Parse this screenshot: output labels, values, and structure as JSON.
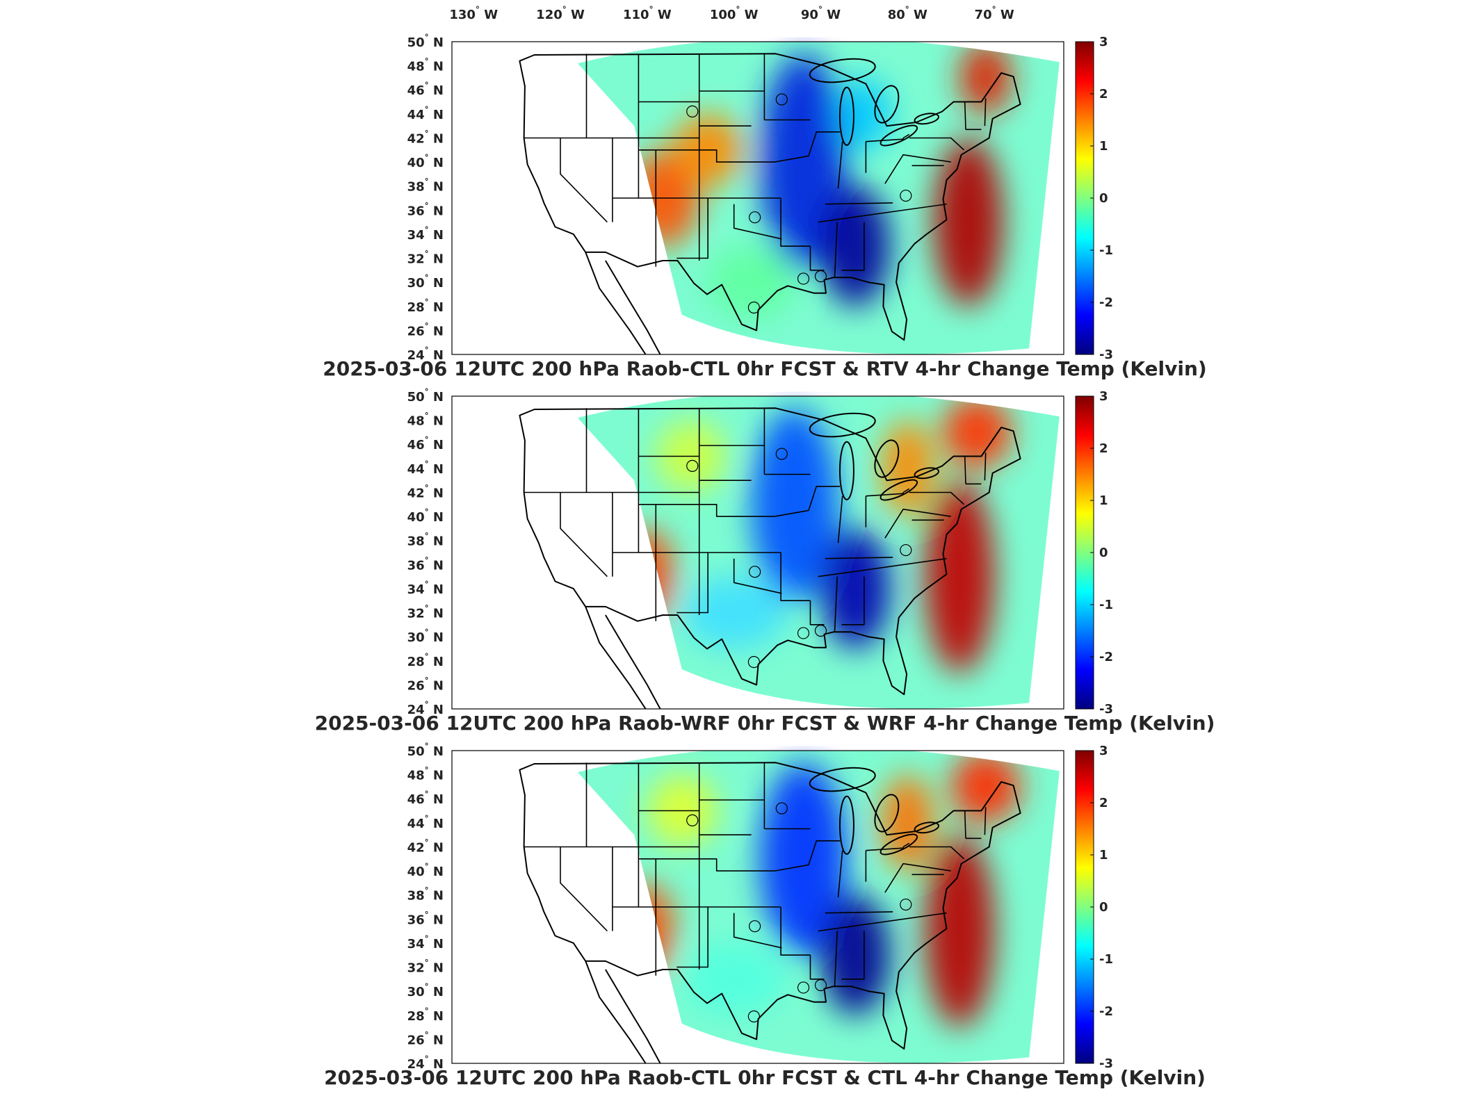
{
  "longitude_ticks": [
    {
      "deg": "130",
      "hem": "W",
      "lon": -130
    },
    {
      "deg": "120",
      "hem": "W",
      "lon": -120
    },
    {
      "deg": "110",
      "hem": "W",
      "lon": -110
    },
    {
      "deg": "100",
      "hem": "W",
      "lon": -100
    },
    {
      "deg": "90",
      "hem": "W",
      "lon": -90
    },
    {
      "deg": "80",
      "hem": "W",
      "lon": -80
    },
    {
      "deg": "70",
      "hem": "W",
      "lon": -70
    }
  ],
  "latitude_ticks": [
    {
      "deg": "50",
      "hem": "N",
      "lat": 50
    },
    {
      "deg": "48",
      "hem": "N",
      "lat": 48
    },
    {
      "deg": "46",
      "hem": "N",
      "lat": 46
    },
    {
      "deg": "44",
      "hem": "N",
      "lat": 44
    },
    {
      "deg": "42",
      "hem": "N",
      "lat": 42
    },
    {
      "deg": "40",
      "hem": "N",
      "lat": 40
    },
    {
      "deg": "38",
      "hem": "N",
      "lat": 38
    },
    {
      "deg": "36",
      "hem": "N",
      "lat": 36
    },
    {
      "deg": "34",
      "hem": "N",
      "lat": 34
    },
    {
      "deg": "32",
      "hem": "N",
      "lat": 32
    },
    {
      "deg": "30",
      "hem": "N",
      "lat": 30
    },
    {
      "deg": "28",
      "hem": "N",
      "lat": 28
    },
    {
      "deg": "26",
      "hem": "N",
      "lat": 26
    },
    {
      "deg": "24",
      "hem": "N",
      "lat": 24
    }
  ],
  "colorbar": {
    "ticks": [
      "3",
      "2",
      "1",
      "0",
      "-1",
      "-2",
      "-3"
    ],
    "range": [
      -3,
      3
    ],
    "colormap": "jet",
    "colors": [
      "#00007f",
      "#0000ff",
      "#0080ff",
      "#00ffff",
      "#80ff80",
      "#ffff00",
      "#ff8000",
      "#ff0000",
      "#7f0000"
    ]
  },
  "panels": [
    {
      "title": "2025-03-06 12UTC 200 hPa Raob-CTL 0hr FCST & RTV 4-hr Change Temp (Kelvin)"
    },
    {
      "title": "2025-03-06 12UTC 200 hPa Raob-WRF 0hr FCST & WRF 4-hr Change Temp (Kelvin)"
    },
    {
      "title": "2025-03-06 12UTC 200 hPa Raob-CTL 0hr FCST & CTL 4-hr Change Temp (Kelvin)"
    }
  ],
  "raob_sites_lonlat": [
    [
      -104.8,
      44.2
    ],
    [
      -94.5,
      45.2
    ],
    [
      -97.6,
      35.4
    ],
    [
      -80.2,
      37.2
    ],
    [
      -97.7,
      27.9
    ],
    [
      -92.0,
      30.3
    ],
    [
      -90.0,
      30.5
    ]
  ],
  "degree_symbol": "°"
}
